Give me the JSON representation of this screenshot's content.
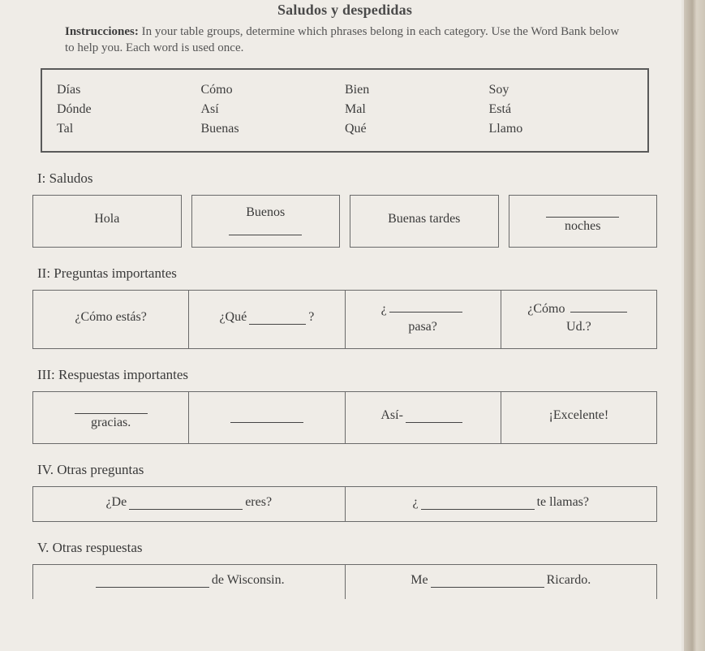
{
  "title": "Saludos y despedidas",
  "instructions_label": "Instrucciones:",
  "instructions_text": "In your table groups, determine which phrases belong in each category. Use the Word Bank below to help you. Each word is used once.",
  "wordbank": {
    "rows": [
      [
        "Días",
        "Cómo",
        "Bien",
        "Soy"
      ],
      [
        "Dónde",
        "Así",
        "Mal",
        "Está"
      ],
      [
        "Tal",
        "Buenas",
        "Qué",
        "Llamo"
      ]
    ],
    "border_color": "#5a5a5a",
    "font_size": 16
  },
  "sections": {
    "s1": {
      "heading": "I: Saludos",
      "cells": [
        {
          "pre": "",
          "text": "Hola",
          "post": ""
        },
        {
          "pre": "",
          "text": "Buenos",
          "post": "",
          "blank_after": true,
          "stack": true
        },
        {
          "pre": "",
          "text": "Buenas tardes",
          "post": ""
        },
        {
          "blank_before": true,
          "text": "noches",
          "stack": true
        }
      ]
    },
    "s2": {
      "heading": "II: Preguntas importantes",
      "cells": [
        {
          "text": "¿Cómo estás?"
        },
        {
          "pre": "¿Qué ",
          "blank": true,
          "post": "?"
        },
        {
          "pre": "¿",
          "blank": true,
          "post": "",
          "line2": "pasa?",
          "stack": true
        },
        {
          "pre": "¿Cómo ",
          "blank": true,
          "post": "",
          "line2": "Ud.?",
          "stack": true
        }
      ]
    },
    "s3": {
      "heading": "III: Respuestas importantes",
      "cells": [
        {
          "blank": true,
          "line2": "gracias.",
          "stack": true
        },
        {
          "blank": true
        },
        {
          "pre": "Así-",
          "blank": true
        },
        {
          "text": "¡Excelente!"
        }
      ]
    },
    "s4": {
      "heading": "IV. Otras preguntas",
      "cells": [
        {
          "pre": "¿De ",
          "blank": true,
          "blank_size": "lg",
          "post": " eres?"
        },
        {
          "pre": "¿",
          "blank": true,
          "blank_size": "lg",
          "post": " te llamas?"
        }
      ]
    },
    "s5": {
      "heading": "V. Otras respuestas",
      "cells": [
        {
          "blank": true,
          "blank_size": "lg",
          "post": " de Wisconsin."
        },
        {
          "pre": "Me ",
          "blank": true,
          "blank_size": "lg",
          "post": " Ricardo."
        }
      ]
    }
  },
  "colors": {
    "page_bg": "#efece7",
    "text": "#3b3b3b",
    "border": "#6a6a6a"
  }
}
